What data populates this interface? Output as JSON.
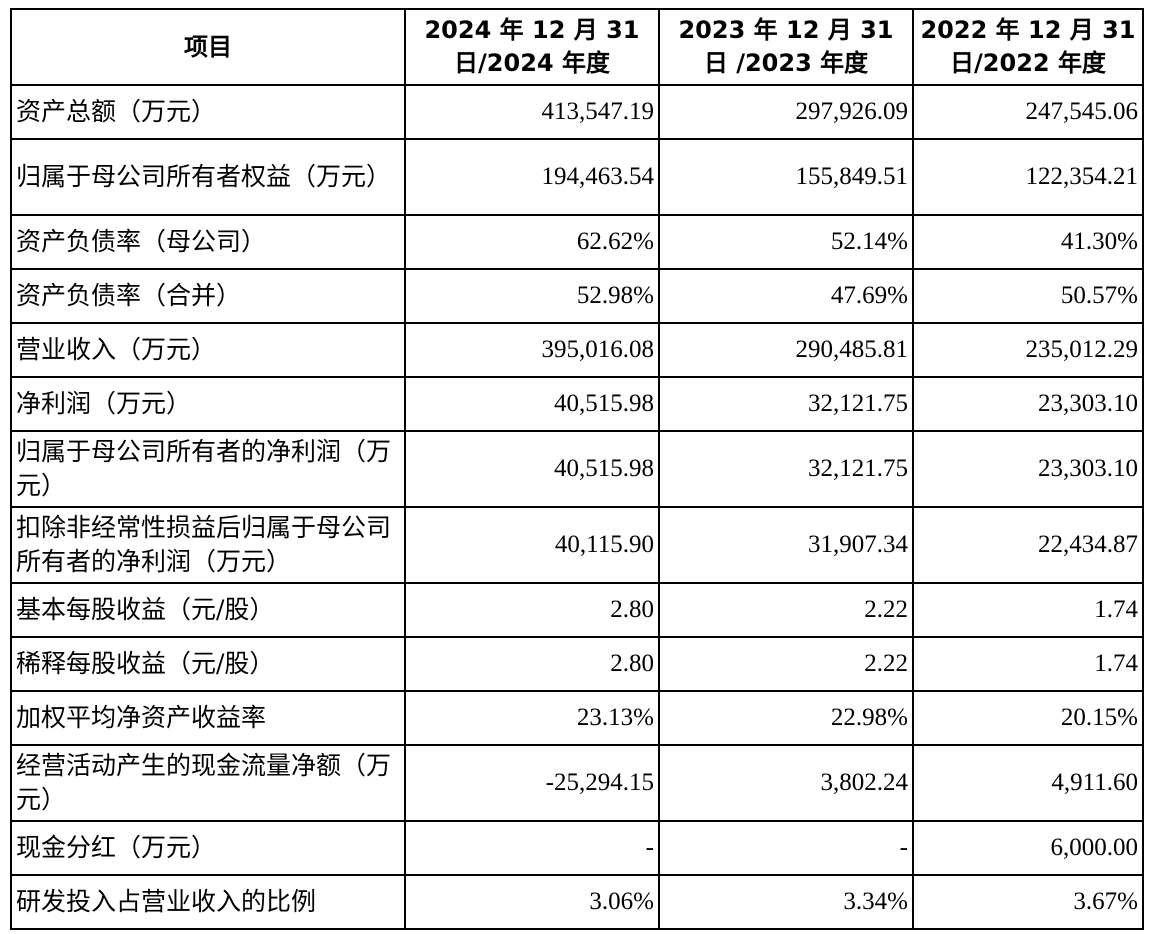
{
  "table": {
    "headers": [
      "项目",
      "2024 年 12 月 31 日/2024 年度",
      "2023 年 12 月 31 日 /2023 年度",
      "2022 年 12 月 31 日/2022 年度"
    ],
    "rows": [
      {
        "label": "资产总额（万元）",
        "values": [
          "413,547.19",
          "297,926.09",
          "247,545.06"
        ]
      },
      {
        "label": "归属于母公司所有者权益（万元）",
        "values": [
          "194,463.54",
          "155,849.51",
          "122,354.21"
        ]
      },
      {
        "label": "资产负债率（母公司）",
        "values": [
          "62.62%",
          "52.14%",
          "41.30%"
        ]
      },
      {
        "label": "资产负债率（合并）",
        "values": [
          "52.98%",
          "47.69%",
          "50.57%"
        ]
      },
      {
        "label": "营业收入（万元）",
        "values": [
          "395,016.08",
          "290,485.81",
          "235,012.29"
        ]
      },
      {
        "label": "净利润（万元）",
        "values": [
          "40,515.98",
          "32,121.75",
          "23,303.10"
        ]
      },
      {
        "label": "归属于母公司所有者的净利润（万元）",
        "values": [
          "40,515.98",
          "32,121.75",
          "23,303.10"
        ]
      },
      {
        "label": "扣除非经常性损益后归属于母公司所有者的净利润（万元）",
        "values": [
          "40,115.90",
          "31,907.34",
          "22,434.87"
        ]
      },
      {
        "label": "基本每股收益（元/股）",
        "values": [
          "2.80",
          "2.22",
          "1.74"
        ]
      },
      {
        "label": "稀释每股收益（元/股）",
        "values": [
          "2.80",
          "2.22",
          "1.74"
        ]
      },
      {
        "label": "加权平均净资产收益率",
        "values": [
          "23.13%",
          "22.98%",
          "20.15%"
        ]
      },
      {
        "label": "经营活动产生的现金流量净额（万元）",
        "values": [
          "-25,294.15",
          "3,802.24",
          "4,911.60"
        ]
      },
      {
        "label": "现金分红（万元）",
        "values": [
          "-",
          "-",
          "6,000.00"
        ]
      },
      {
        "label": "研发投入占营业收入的比例",
        "values": [
          "3.06%",
          "3.34%",
          "3.67%"
        ]
      }
    ]
  }
}
